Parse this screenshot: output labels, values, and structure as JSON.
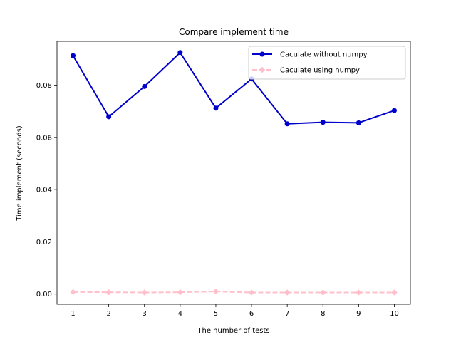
{
  "chart_data": {
    "type": "line",
    "title": "Compare implement time",
    "xlabel": "The number of tests",
    "ylabel": "Time implement (seconds)",
    "x": [
      1,
      2,
      3,
      4,
      5,
      6,
      7,
      8,
      9,
      10
    ],
    "xlim": [
      0.55,
      10.45
    ],
    "ylim": [
      -0.0039,
      0.0968
    ],
    "xticks": [
      "1",
      "2",
      "3",
      "4",
      "5",
      "6",
      "7",
      "8",
      "9",
      "10"
    ],
    "yticks": [
      {
        "value": 0.0,
        "label": "0.00"
      },
      {
        "value": 0.02,
        "label": "0.02"
      },
      {
        "value": 0.04,
        "label": "0.04"
      },
      {
        "value": 0.06,
        "label": "0.06"
      },
      {
        "value": 0.08,
        "label": "0.08"
      }
    ],
    "grid": false,
    "legend_position": "top-right",
    "series": [
      {
        "name": "Caculate without numpy",
        "color": "#0000cc",
        "marker": "circle",
        "linestyle": "solid",
        "values": [
          0.0913,
          0.0679,
          0.0795,
          0.0925,
          0.0712,
          0.0824,
          0.0652,
          0.0658,
          0.0656,
          0.0703
        ]
      },
      {
        "name": "Caculate using numpy",
        "color": "#ffc0cb",
        "marker": "diamond",
        "linestyle": "dashed",
        "values": [
          0.0008,
          0.0007,
          0.0006,
          0.0007,
          0.001,
          0.0006,
          0.0006,
          0.0006,
          0.0006,
          0.0006
        ]
      }
    ]
  }
}
